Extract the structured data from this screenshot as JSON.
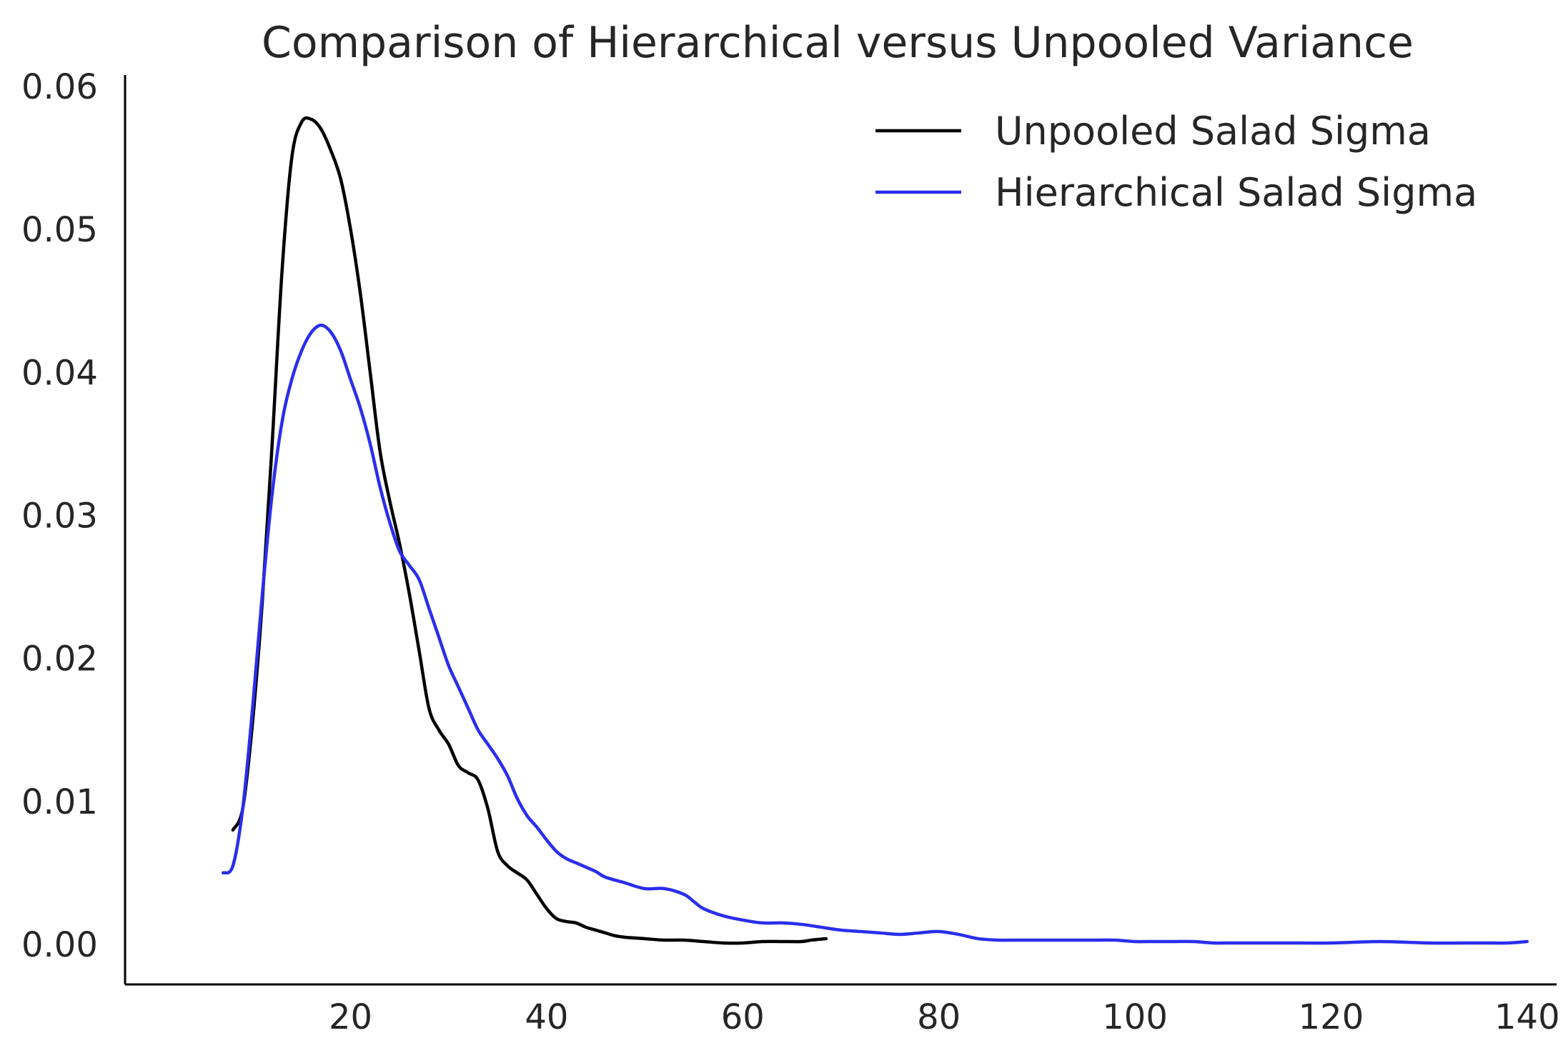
{
  "chart_data": {
    "type": "line",
    "title": "Comparison of Hierarchical versus Unpooled Variance",
    "xlabel": "",
    "ylabel": "",
    "xlim": [
      -3,
      143
    ],
    "ylim": [
      -0.0028,
      0.0608
    ],
    "x_ticks": [
      20,
      40,
      60,
      80,
      100,
      120,
      140
    ],
    "x_tick_labels": [
      "20",
      "40",
      "60",
      "80",
      "100",
      "120",
      "140"
    ],
    "y_ticks": [
      0.0,
      0.01,
      0.02,
      0.03,
      0.04,
      0.05,
      0.06
    ],
    "y_tick_labels": [
      "0.00",
      "0.01",
      "0.02",
      "0.03",
      "0.04",
      "0.05",
      "0.06"
    ],
    "grid": false,
    "legend_position": "top-right",
    "series": [
      {
        "name": "Unpooled Salad Sigma",
        "color": "#000000",
        "x": [
          8.0,
          9.0,
          10.0,
          11.0,
          12.0,
          13.0,
          14.0,
          15.0,
          16.0,
          17.0,
          18.0,
          19.0,
          20.0,
          21.0,
          22.0,
          23.0,
          24.0,
          25.0,
          26.0,
          27.0,
          28.0,
          29.0,
          30.0,
          31.0,
          32.0,
          33.0,
          34.0,
          35.0,
          36.0,
          37.0,
          38.0,
          39.0,
          40.0,
          41.0,
          42.0,
          43.0,
          44.0,
          45.0,
          46.0,
          47.0,
          48.0,
          50.0,
          52.0,
          54.0,
          56.0,
          58.0,
          60.0,
          62.0,
          64.0,
          66.0,
          67.0,
          68.5
        ],
        "values": [
          0.008,
          0.0095,
          0.0155,
          0.024,
          0.035,
          0.047,
          0.055,
          0.0575,
          0.0577,
          0.057,
          0.0555,
          0.0535,
          0.05,
          0.0455,
          0.04,
          0.0345,
          0.031,
          0.028,
          0.0245,
          0.0205,
          0.0165,
          0.015,
          0.014,
          0.0125,
          0.012,
          0.0115,
          0.0095,
          0.0065,
          0.0055,
          0.005,
          0.0045,
          0.0035,
          0.0025,
          0.0018,
          0.0016,
          0.0015,
          0.0012,
          0.001,
          0.0008,
          0.0006,
          0.0005,
          0.0004,
          0.0003,
          0.0003,
          0.0002,
          0.0001,
          0.0001,
          0.0002,
          0.0002,
          0.0002,
          0.0003,
          0.0004
        ]
      },
      {
        "name": "Hierarchical Salad Sigma",
        "color": "#2a2eec",
        "x": [
          7.0,
          8.0,
          9.0,
          10.0,
          11.0,
          12.0,
          13.0,
          14.0,
          15.0,
          16.0,
          17.0,
          18.0,
          19.0,
          20.0,
          21.0,
          22.0,
          23.0,
          24.0,
          25.0,
          26.0,
          27.0,
          28.0,
          29.0,
          30.0,
          31.0,
          32.0,
          33.0,
          34.0,
          35.0,
          36.0,
          37.0,
          38.0,
          39.0,
          40.0,
          41.0,
          42.0,
          43.0,
          44.0,
          45.0,
          46.0,
          48.0,
          50.0,
          52.0,
          54.0,
          55.0,
          56.0,
          58.0,
          60.0,
          62.0,
          64.0,
          66.0,
          68.0,
          70.0,
          72.0,
          74.0,
          76.0,
          78.0,
          80.0,
          82.0,
          84.0,
          86.0,
          88.0,
          90.0,
          92.0,
          94.0,
          96.0,
          98.0,
          100.0,
          102.0,
          104.0,
          106.0,
          108.0,
          110.0,
          115.0,
          120.0,
          125.0,
          130.0,
          135.0,
          138.0,
          140.0
        ],
        "values": [
          0.005,
          0.0055,
          0.0095,
          0.0165,
          0.0245,
          0.0315,
          0.0365,
          0.0395,
          0.0415,
          0.0428,
          0.0433,
          0.0428,
          0.0415,
          0.0395,
          0.0375,
          0.035,
          0.032,
          0.0295,
          0.0275,
          0.0265,
          0.0255,
          0.0235,
          0.0215,
          0.0195,
          0.018,
          0.0165,
          0.015,
          0.014,
          0.013,
          0.0118,
          0.0102,
          0.009,
          0.0082,
          0.0073,
          0.0065,
          0.006,
          0.0057,
          0.0054,
          0.0051,
          0.0047,
          0.0043,
          0.0039,
          0.0039,
          0.0035,
          0.003,
          0.0025,
          0.002,
          0.0017,
          0.0015,
          0.0015,
          0.0014,
          0.0012,
          0.001,
          0.0009,
          0.0008,
          0.0007,
          0.0008,
          0.0009,
          0.0007,
          0.0004,
          0.0003,
          0.0003,
          0.0003,
          0.0003,
          0.0003,
          0.0003,
          0.0003,
          0.0002,
          0.0002,
          0.0002,
          0.0002,
          0.0001,
          0.0001,
          0.0001,
          0.0001,
          0.0002,
          0.0001,
          0.0001,
          0.0001,
          0.0002
        ]
      }
    ]
  }
}
